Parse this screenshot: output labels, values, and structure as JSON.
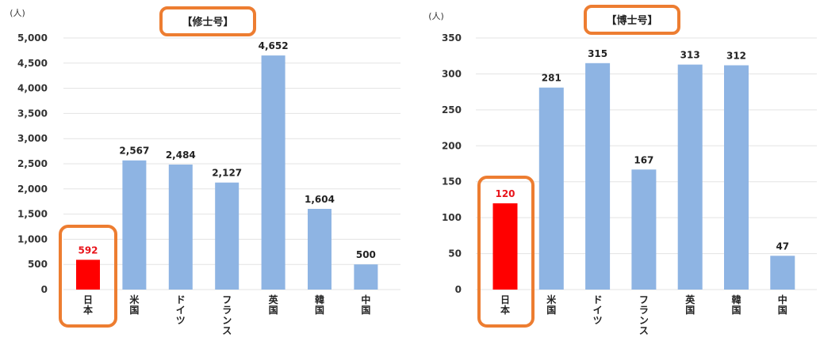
{
  "chart_data": [
    {
      "type": "bar",
      "title": "【修士号】",
      "unit_label": "(人)",
      "categories": [
        "日本",
        "米国",
        "ドイツ",
        "フランス",
        "英国",
        "韓国",
        "中国"
      ],
      "values": [
        592,
        2567,
        2484,
        2127,
        4652,
        1604,
        500
      ],
      "value_labels": [
        "592",
        "2,567",
        "2,484",
        "2,127",
        "4,652",
        "1,604",
        "500"
      ],
      "ylim": [
        0,
        5000
      ],
      "yticks": [
        "0",
        "500",
        "1,000",
        "1,500",
        "2,000",
        "2,500",
        "3,000",
        "3,500",
        "4,000",
        "4,500",
        "5,000"
      ],
      "grid": true,
      "colors": {
        "bar": "#8eb4e3",
        "highlight": "#ff0000",
        "highlight_label": "#e8141b",
        "box": "#ed7d31"
      }
    },
    {
      "type": "bar",
      "title": "【博士号】",
      "unit_label": "(人)",
      "categories": [
        "日本",
        "米国",
        "ドイツ",
        "フランス",
        "英国",
        "韓国",
        "中国"
      ],
      "values": [
        120,
        281,
        315,
        167,
        313,
        312,
        47
      ],
      "value_labels": [
        "120",
        "281",
        "315",
        "167",
        "313",
        "312",
        "47"
      ],
      "ylim": [
        0,
        350
      ],
      "yticks": [
        "0",
        "50",
        "100",
        "150",
        "200",
        "250",
        "300",
        "350"
      ],
      "grid": true,
      "colors": {
        "bar": "#8eb4e3",
        "highlight": "#ff0000",
        "highlight_label": "#e8141b",
        "box": "#ed7d31"
      }
    }
  ]
}
